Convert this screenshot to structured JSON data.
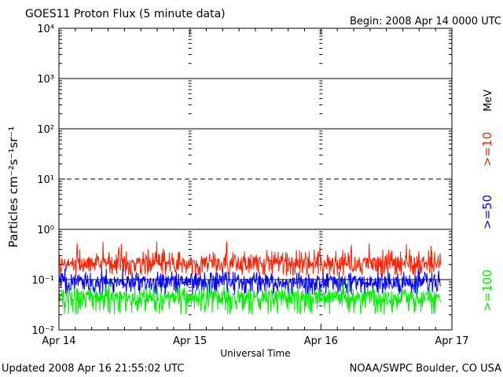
{
  "header": {
    "title": "GOES11 Proton Flux (5 minute data)",
    "begin": "Begin: 2008 Apr 14 0000 UTC"
  },
  "footer": {
    "updated": "Updated 2008 Apr 16 21:55:02 UTC",
    "credit": "NOAA/SWPC Boulder, CO USA"
  },
  "colors": {
    "ge10": "#ff2000",
    "ge50": "#0000ff",
    "ge100": "#00f000",
    "frame": "#000000"
  },
  "chart_data": {
    "type": "line",
    "title": "GOES11 Proton Flux (5 minute data)",
    "xlabel": "Universal Time",
    "ylabel": "Particles cm⁻²s⁻¹sr⁻¹",
    "yscale": "log",
    "ylim": [
      0.01,
      10000
    ],
    "y_ticks": [
      "10⁻²",
      "10⁻¹",
      "10⁰",
      "10¹",
      "10²",
      "10³",
      "10⁴"
    ],
    "y_tick_values": [
      0.01,
      0.1,
      1,
      10,
      100,
      1000,
      10000
    ],
    "xlim": [
      "2008-04-14",
      "2008-04-17"
    ],
    "x_ticks": [
      "Apr 14",
      "Apr 15",
      "Apr 16",
      "Apr 17"
    ],
    "x_tick_values": [
      "2008-04-14",
      "2008-04-15",
      "2008-04-16",
      "2008-04-17"
    ],
    "data_end": "2008-04-16 21:55 UTC",
    "units_label": "MeV",
    "dashed_gridline_at": 10,
    "solid_gridlines_at": [
      0.1,
      1,
      100,
      1000
    ],
    "series": [
      {
        "name": ">=10",
        "color": "#ff2000",
        "typical": 0.22,
        "range": [
          0.12,
          0.6
        ]
      },
      {
        "name": ">=50",
        "color": "#0000ff",
        "typical": 0.09,
        "range": [
          0.05,
          0.2
        ]
      },
      {
        "name": ">=100",
        "color": "#00f000",
        "typical": 0.045,
        "range": [
          0.02,
          0.1
        ]
      }
    ]
  }
}
